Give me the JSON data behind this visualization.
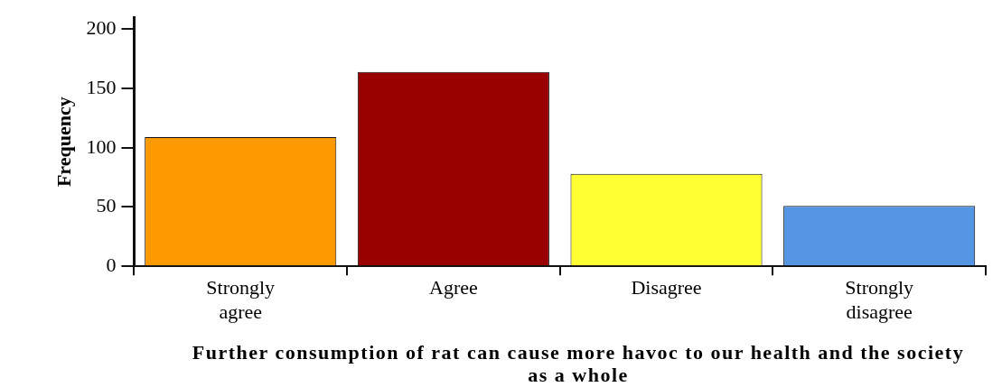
{
  "chart_data": {
    "type": "bar",
    "xlabel": "Further consumption of rat can cause more havoc to our health and the society as a whole",
    "ylabel": "Frequency",
    "categories": [
      "Strongly agree",
      "Agree",
      "Disagree",
      "Strongly disagree"
    ],
    "values": [
      109,
      164,
      78,
      51
    ],
    "colors": [
      "#fe9900",
      "#990000",
      "#ffff33",
      "#5495e4"
    ],
    "ylim": [
      0,
      210
    ],
    "yticks": [
      0,
      50,
      100,
      150,
      200
    ],
    "grid": false,
    "legend": false
  }
}
